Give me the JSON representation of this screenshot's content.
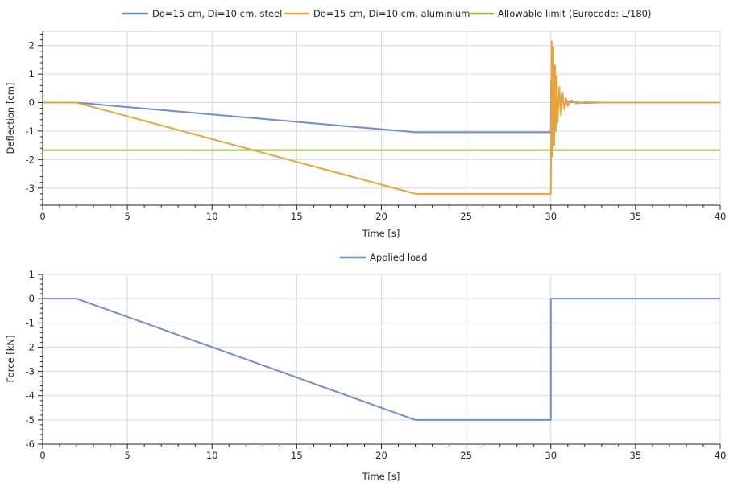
{
  "chart_data": [
    {
      "type": "line",
      "xlabel": "Time [s]",
      "ylabel": "Deflection [cm]",
      "xlim": [
        0,
        40
      ],
      "ylim": [
        -3.6,
        2.5
      ],
      "x_ticks": [
        0,
        5,
        10,
        15,
        20,
        25,
        30,
        35,
        40
      ],
      "y_ticks": [
        -3,
        -2,
        -1,
        0,
        1,
        2
      ],
      "grid": true,
      "legend_position": "top",
      "series": [
        {
          "name": "Do=15 cm, Di=10 cm, steel",
          "color": "#6f8fc6",
          "x": [
            0,
            2,
            22,
            30,
            30.02,
            30.05,
            30.1,
            30.15,
            30.2,
            30.25,
            30.3,
            30.4,
            30.5,
            30.6,
            30.7,
            30.8,
            31,
            31.2,
            32,
            33,
            40
          ],
          "y": [
            0,
            0,
            -1.04,
            -1.04,
            0.75,
            -0.8,
            0.6,
            -0.55,
            0.45,
            -0.4,
            0.3,
            -0.25,
            0.2,
            -0.15,
            0.1,
            -0.08,
            0.05,
            0.02,
            -0.01,
            0,
            0
          ]
        },
        {
          "name": "Do=15 cm, Di=10 cm, aluminium",
          "color": "#e8a33a",
          "x": [
            0,
            2,
            22,
            30,
            30.05,
            30.1,
            30.15,
            30.2,
            30.25,
            30.3,
            30.35,
            30.4,
            30.5,
            30.6,
            30.7,
            30.8,
            30.9,
            31,
            31.2,
            31.5,
            32,
            33,
            40
          ],
          "y": [
            0,
            0,
            -3.2,
            -3.2,
            2.15,
            -1.9,
            1.95,
            -1.5,
            1.3,
            -1.0,
            0.9,
            -0.7,
            0.55,
            -0.45,
            0.35,
            -0.25,
            0.15,
            -0.12,
            0.08,
            -0.03,
            0.02,
            0,
            0
          ]
        },
        {
          "name": "Allowable limit (Eurocode: L/180)",
          "color": "#8cbf3f",
          "x": [
            0,
            40
          ],
          "y": [
            -1.67,
            -1.67
          ]
        }
      ]
    },
    {
      "type": "line",
      "xlabel": "Time [s]",
      "ylabel": "Force [kN]",
      "xlim": [
        0,
        40
      ],
      "ylim": [
        -6,
        1
      ],
      "x_ticks": [
        0,
        5,
        10,
        15,
        20,
        25,
        30,
        35,
        40
      ],
      "y_ticks": [
        -6,
        -5,
        -4,
        -3,
        -2,
        -1,
        0,
        1
      ],
      "grid": true,
      "legend_position": "top",
      "series": [
        {
          "name": "Applied load",
          "color": "#6f8fc6",
          "x": [
            0,
            2,
            22,
            30,
            30,
            40
          ],
          "y": [
            0,
            0,
            -5,
            -5,
            0,
            0
          ]
        }
      ]
    }
  ]
}
